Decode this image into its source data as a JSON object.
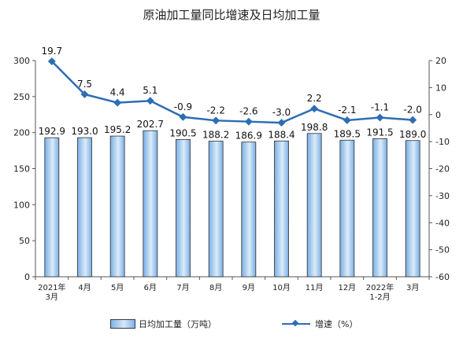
{
  "title": "原油加工量同比增速及日均加工量",
  "legend": {
    "bar_label": "日均加工量（万吨）",
    "line_label": "增速（%）"
  },
  "colors": {
    "bar": "#9cc6ee",
    "bar_stroke": "#2f2f2f",
    "line": "#2e6db4"
  },
  "chart_data": {
    "type": "bar",
    "categories": [
      [
        "2021年",
        "3月"
      ],
      [
        "4月"
      ],
      [
        "5月"
      ],
      [
        "6月"
      ],
      [
        "7月"
      ],
      [
        "8月"
      ],
      [
        "9月"
      ],
      [
        "10月"
      ],
      [
        "11月"
      ],
      [
        "12月"
      ],
      [
        "2022年",
        "1-2月"
      ],
      [
        "3月"
      ]
    ],
    "series": [
      {
        "name": "日均加工量（万吨）",
        "type": "bar",
        "axis": "left",
        "values": [
          192.9,
          193.0,
          195.2,
          202.7,
          190.5,
          188.2,
          186.9,
          188.4,
          198.8,
          189.5,
          191.5,
          189.0
        ],
        "labels": [
          "192.9",
          "193.0",
          "195.2",
          "202.7",
          "190.5",
          "188.2",
          "186.9",
          "188.4",
          "198.8",
          "189.5",
          "191.5",
          "189.0"
        ]
      },
      {
        "name": "增速（%）",
        "type": "line",
        "axis": "right",
        "values": [
          19.7,
          7.5,
          4.4,
          5.1,
          -0.9,
          -2.2,
          -2.6,
          -3.0,
          2.2,
          -2.1,
          -1.1,
          -2.0
        ],
        "labels": [
          "19.7",
          "7.5",
          "4.4",
          "5.1",
          "-0.9",
          "-2.2",
          "-2.6",
          "-3.0",
          "2.2",
          "-2.1",
          "-1.1",
          "-2.0"
        ]
      }
    ],
    "y_left": {
      "ylim": [
        0,
        300
      ],
      "ticks": [
        "0",
        "50",
        "100",
        "150",
        "200",
        "250",
        "300"
      ]
    },
    "y_right": {
      "ylim": [
        -60,
        20
      ],
      "ticks": [
        "-60",
        "-50",
        "-40",
        "-30",
        "-20",
        "-10",
        "0",
        "10",
        "20"
      ]
    },
    "grid": false,
    "legend_position": "bottom"
  }
}
